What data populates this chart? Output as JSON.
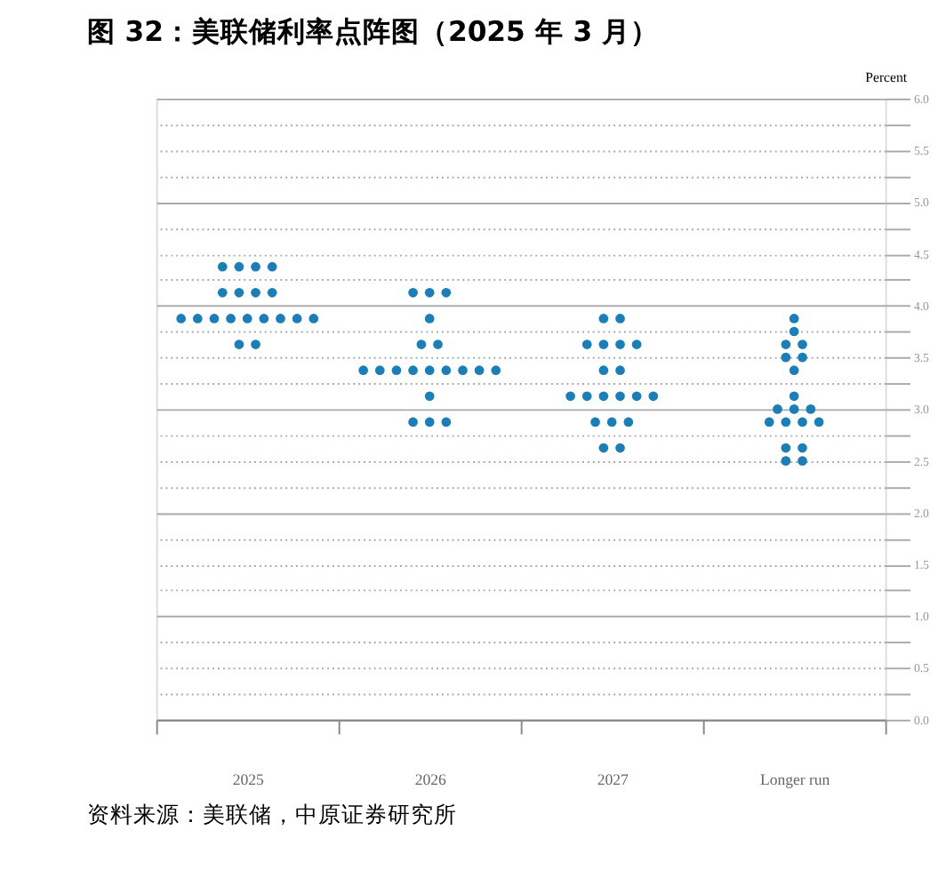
{
  "chart_data": {
    "type": "scatter",
    "title": "图 32：美联储利率点阵图（2025 年 3 月）",
    "ylabel": "Percent",
    "categories": [
      "2025",
      "2026",
      "2027",
      "Longer run"
    ],
    "series": [
      {
        "color": "#1a7fb8",
        "values": [
          4.375,
          4.125,
          3.875,
          3.875
        ]
      },
      {
        "color": "#1a7fb8",
        "values": [
          4.375,
          4.125,
          3.875,
          3.75
        ]
      },
      {
        "color": "#1a7fb8",
        "values": [
          4.375,
          4.125,
          3.625,
          3.625
        ]
      },
      {
        "color": "#1a7fb8",
        "values": [
          4.375,
          3.875,
          3.625,
          3.625
        ]
      },
      {
        "color": "#1a7fb8",
        "values": [
          4.125,
          3.625,
          3.625,
          3.5
        ]
      },
      {
        "color": "#1a7fb8",
        "values": [
          4.125,
          3.625,
          3.625,
          3.5
        ]
      },
      {
        "color": "#1a7fb8",
        "values": [
          4.125,
          3.375,
          3.375,
          3.375
        ]
      },
      {
        "color": "#1a7fb8",
        "values": [
          4.125,
          3.375,
          3.375,
          3.125
        ]
      },
      {
        "color": "#1a7fb8",
        "values": [
          3.875,
          3.375,
          3.125,
          3.0
        ]
      },
      {
        "color": "#1a7fb8",
        "values": [
          3.875,
          3.375,
          3.125,
          3.0
        ]
      },
      {
        "color": "#1a7fb8",
        "values": [
          3.875,
          3.375,
          3.125,
          3.0
        ]
      },
      {
        "color": "#1a7fb8",
        "values": [
          3.875,
          3.375,
          3.125,
          2.875
        ]
      },
      {
        "color": "#1a7fb8",
        "values": [
          3.875,
          3.375,
          3.125,
          2.875
        ]
      },
      {
        "color": "#1a7fb8",
        "values": [
          3.875,
          3.375,
          3.125,
          2.875
        ]
      },
      {
        "color": "#1a7fb8",
        "values": [
          3.875,
          3.375,
          2.875,
          2.875
        ]
      },
      {
        "color": "#1a7fb8",
        "values": [
          3.875,
          3.125,
          2.875,
          2.625
        ]
      },
      {
        "color": "#1a7fb8",
        "values": [
          3.875,
          2.875,
          2.875,
          2.625
        ]
      },
      {
        "color": "#1a7fb8",
        "values": [
          3.625,
          2.875,
          2.625,
          2.5
        ]
      },
      {
        "color": "#1a7fb8",
        "values": [
          3.625,
          2.875,
          2.625,
          2.5
        ]
      }
    ],
    "ylim": [
      0,
      6
    ],
    "yticks": [
      {
        "value": 0,
        "label": "0.0"
      },
      {
        "value": 0.25,
        "label": null
      },
      {
        "value": 0.5,
        "label": "0.5"
      },
      {
        "value": 0.75,
        "label": null
      },
      {
        "value": 1,
        "label": "1.0"
      },
      {
        "value": 1.25,
        "label": null
      },
      {
        "value": 1.5,
        "label": "1.5"
      },
      {
        "value": 1.75,
        "label": null
      },
      {
        "value": 2,
        "label": "2.0"
      },
      {
        "value": 2.25,
        "label": null
      },
      {
        "value": 2.5,
        "label": "2.5"
      },
      {
        "value": 2.75,
        "label": null
      },
      {
        "value": 3,
        "label": "3.0"
      },
      {
        "value": 3.25,
        "label": null
      },
      {
        "value": 3.5,
        "label": "3.5"
      },
      {
        "value": 3.75,
        "label": null
      },
      {
        "value": 4,
        "label": "4.0"
      },
      {
        "value": 4.25,
        "label": null
      },
      {
        "value": 4.5,
        "label": "4.5"
      },
      {
        "value": 4.75,
        "label": null
      },
      {
        "value": 5,
        "label": "5.0"
      },
      {
        "value": 5.25,
        "label": null
      },
      {
        "value": 5.5,
        "label": "5.5"
      },
      {
        "value": 5.75,
        "label": null
      },
      {
        "value": 6,
        "label": "6.0"
      }
    ],
    "grid": true,
    "marker": "circle",
    "legend": false,
    "annotations": [
      "资料来源：美联储，中原证券研究所"
    ]
  }
}
